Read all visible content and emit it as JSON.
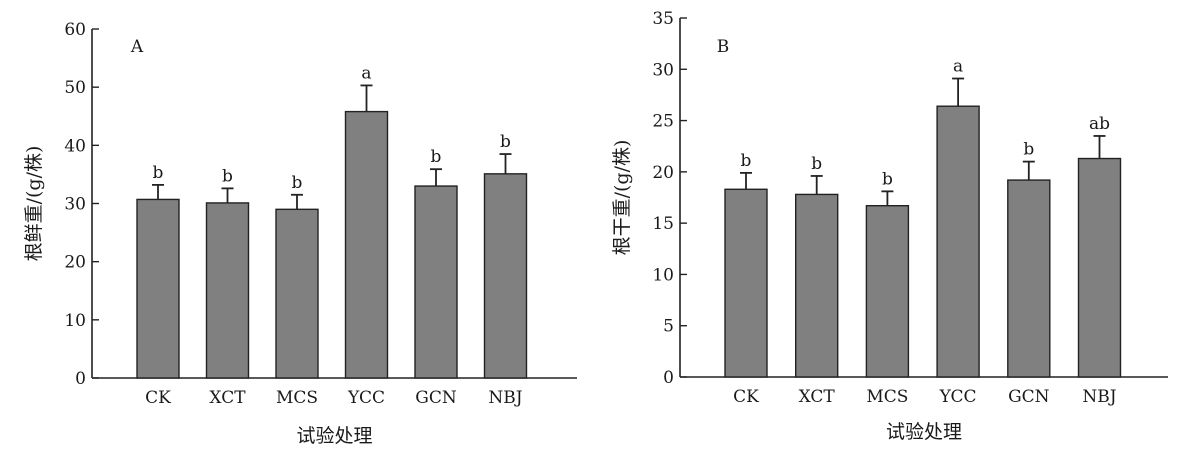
{
  "chart_data": [
    {
      "type": "bar",
      "panel_label": "A",
      "categories": [
        "CK",
        "XCT",
        "MCS",
        "YCC",
        "GCN",
        "NBJ"
      ],
      "values": [
        30.7,
        30.1,
        29.0,
        45.8,
        33.0,
        35.1
      ],
      "errors": [
        2.5,
        2.5,
        2.5,
        4.5,
        2.9,
        3.4
      ],
      "significance": [
        "b",
        "b",
        "b",
        "a",
        "b",
        "b"
      ],
      "xlabel": "试验处理",
      "ylabel": "根鲜重/(g/株)",
      "ylim": [
        0,
        60
      ],
      "yticks": [
        0,
        10,
        20,
        30,
        40,
        50,
        60
      ],
      "grid": false,
      "bar_color": "#808080"
    },
    {
      "type": "bar",
      "panel_label": "B",
      "categories": [
        "CK",
        "XCT",
        "MCS",
        "YCC",
        "GCN",
        "NBJ"
      ],
      "values": [
        18.3,
        17.8,
        16.7,
        26.4,
        19.2,
        21.3
      ],
      "errors": [
        1.6,
        1.8,
        1.4,
        2.7,
        1.8,
        2.2
      ],
      "significance": [
        "b",
        "b",
        "b",
        "a",
        "b",
        "ab"
      ],
      "xlabel": "试验处理",
      "ylabel": "根干重/(g/株)",
      "ylim": [
        0,
        35
      ],
      "yticks": [
        0,
        5,
        10,
        15,
        20,
        25,
        30,
        35
      ],
      "grid": false,
      "bar_color": "#808080"
    }
  ]
}
